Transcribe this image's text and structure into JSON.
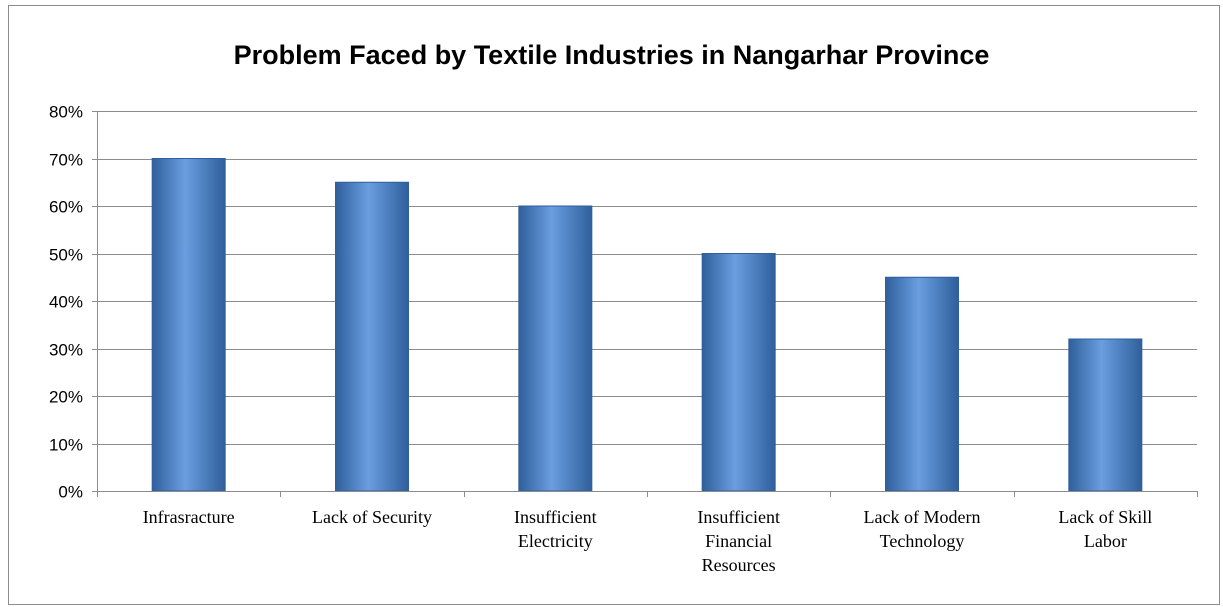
{
  "chart_data": {
    "type": "bar",
    "title": "Problem Faced by Textile Industries in Nangarhar Province",
    "xlabel": "",
    "ylabel": "",
    "categories": [
      [
        "Infrasracture"
      ],
      [
        "Lack of Security"
      ],
      [
        "Insufficient",
        "Electricity"
      ],
      [
        "Insufficient",
        "Financial",
        "Resources"
      ],
      [
        "Lack of Modern",
        "Technology"
      ],
      [
        "Lack of Skill",
        "Labor"
      ]
    ],
    "values": [
      0.7,
      0.65,
      0.6,
      0.5,
      0.45,
      0.32
    ],
    "ylim": [
      0,
      0.8
    ],
    "yticks": [
      "0%",
      "10%",
      "20%",
      "30%",
      "40%",
      "50%",
      "60%",
      "70%",
      "80%"
    ],
    "grid": true,
    "legend": "none",
    "colors": {
      "bar": "#4f81bd",
      "bar_light": "#6a9ee0",
      "bar_dark": "#2f5f9c",
      "grid": "#8c8c8c"
    }
  }
}
